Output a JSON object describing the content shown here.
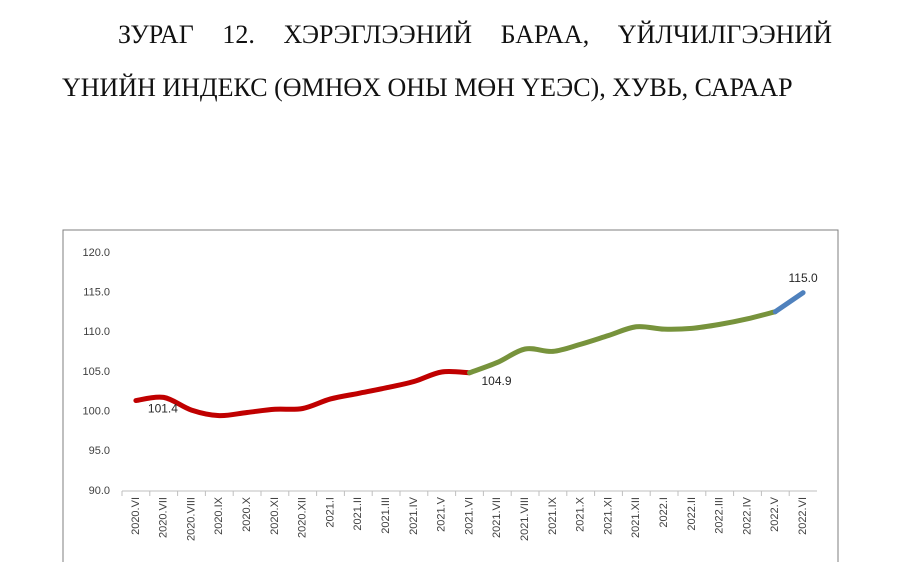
{
  "chart_data": {
    "type": "line",
    "title": "ЗУРАГ 12. ХЭРЭГЛЭЭНИЙ БАРАА, ҮЙЛЧИЛГЭЭНИЙ ҮНИЙН ИНДЕКС (ӨМНӨХ ОНЫ МӨН ҮЕЭС), ХУВЬ, САРААР",
    "categories": [
      "2020.VI",
      "2020.VII",
      "2020.VIII",
      "2020.IX",
      "2020.X",
      "2020.XI",
      "2020.XII",
      "2021.I",
      "2021.II",
      "2021.III",
      "2021.IV",
      "2021.V",
      "2021.VI",
      "2021.VII",
      "2021.VIII",
      "2021.IX",
      "2021.X",
      "2021.XI",
      "2021.XII",
      "2022.I",
      "2022.II",
      "2022.III",
      "2022.IV",
      "2022.V",
      "2022.VI"
    ],
    "series": [
      {
        "color": "#c00000",
        "values": [
          101.4,
          101.8,
          100.2,
          99.5,
          99.9,
          100.3,
          100.4,
          101.6,
          102.3,
          103.0,
          103.8,
          105.0,
          104.9,
          null,
          null,
          null,
          null,
          null,
          null,
          null,
          null,
          null,
          null,
          null,
          null
        ],
        "value_labels": [
          "101.4",
          null,
          null,
          null,
          null,
          null,
          null,
          null,
          null,
          null,
          null,
          null,
          "104.9",
          null,
          null,
          null,
          null,
          null,
          null,
          null,
          null,
          null,
          null,
          null,
          null
        ]
      },
      {
        "color": "#77933c",
        "values": [
          null,
          null,
          null,
          null,
          null,
          null,
          null,
          null,
          null,
          null,
          null,
          null,
          104.9,
          106.2,
          107.9,
          107.6,
          108.5,
          109.6,
          110.7,
          110.4,
          110.5,
          111.0,
          111.7,
          112.6,
          null
        ]
      },
      {
        "color": "#4f81bd",
        "values": [
          null,
          null,
          null,
          null,
          null,
          null,
          null,
          null,
          null,
          null,
          null,
          null,
          null,
          null,
          null,
          null,
          null,
          null,
          null,
          null,
          null,
          null,
          null,
          112.6,
          115.0
        ],
        "value_labels": [
          null,
          null,
          null,
          null,
          null,
          null,
          null,
          null,
          null,
          null,
          null,
          null,
          null,
          null,
          null,
          null,
          null,
          null,
          null,
          null,
          null,
          null,
          null,
          null,
          "115.0"
        ]
      }
    ],
    "ylim": [
      90,
      120
    ],
    "yticks": [
      {
        "value": 90,
        "label": "90.0"
      },
      {
        "value": 95,
        "label": "95.0"
      },
      {
        "value": 100,
        "label": "100.0"
      },
      {
        "value": 105,
        "label": "105.0"
      },
      {
        "value": 110,
        "label": "110.0"
      },
      {
        "value": 115,
        "label": "115.0"
      },
      {
        "value": 120,
        "label": "120.0"
      }
    ],
    "grid": false
  }
}
